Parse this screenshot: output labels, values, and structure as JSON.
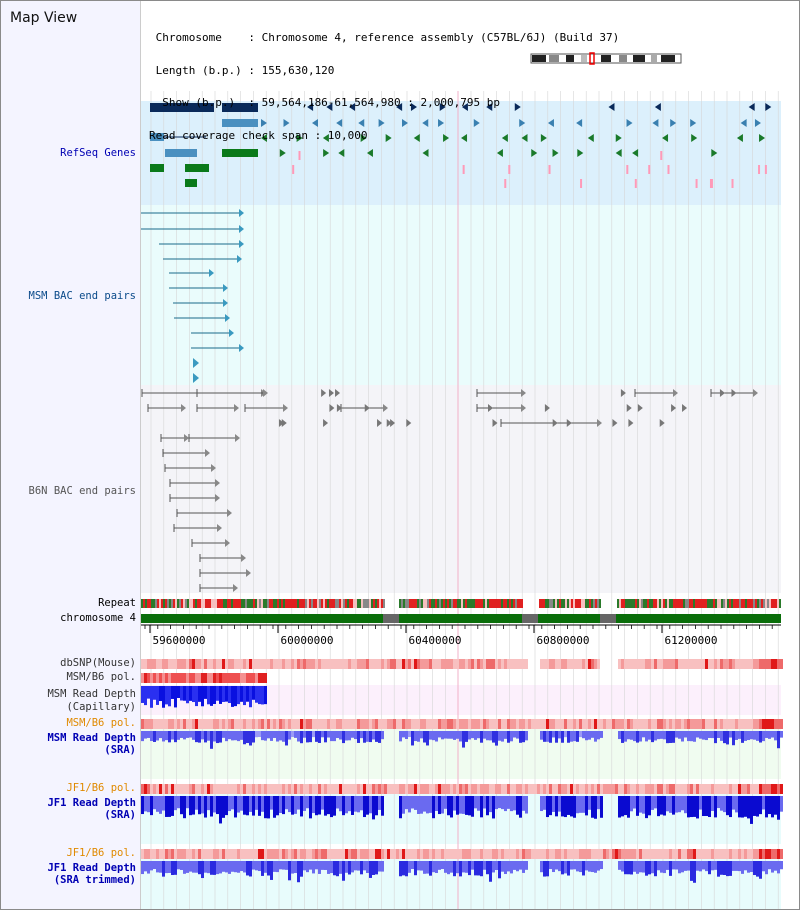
{
  "title": "Map View",
  "header": {
    "line1": " Chromosome    : Chromosome 4, reference assembly (C57BL/6J) (Build 37)",
    "line2": " Length (b.p.) : 155,630,120",
    "line3": "  Show (b.p.)  : 59,564,186-61,564,980 : 2,000,795 bp",
    "line4": "Read coverage check span : 10,000"
  },
  "tracks": {
    "refseq": "RefSeq Genes",
    "msm_bac": "MSM BAC end pairs",
    "b6n_bac": "B6N BAC end pairs",
    "repeat": "Repeat",
    "chromosome": "chromosome 4",
    "dbsnp": "dbSNP(Mouse)",
    "msm_b6_pol_1": "MSM/B6 pol.",
    "msm_depth_cap_1": "MSM Read Depth",
    "msm_depth_cap_2": "(Capillary)",
    "msm_b6_pol_2": "MSM/B6 pol.",
    "msm_depth_sra_1": "MSM Read Depth",
    "msm_depth_sra_2": "(SRA)",
    "jf1_b6_pol_1": "JF1/B6 pol.",
    "jf1_depth_sra_1": "JF1 Read Depth",
    "jf1_depth_sra_2": "(SRA)",
    "jf1_b6_pol_2": "JF1/B6 pol.",
    "jf1_depth_trim_1": "JF1 Read Depth",
    "jf1_depth_trim_2": "(SRA trimmed)"
  },
  "axis": {
    "ticks": [
      "59600000",
      "60000000",
      "60400000",
      "60800000",
      "61200000"
    ]
  },
  "colors": {
    "blue_label": "#0000b4",
    "orange_label": "#e08a00",
    "refseq_bg": "#dcf0fc",
    "bac_bg": "#eafcfc",
    "b6n_bg": "#f4f4f8",
    "chrom_band": "#0a6e0a"
  }
}
